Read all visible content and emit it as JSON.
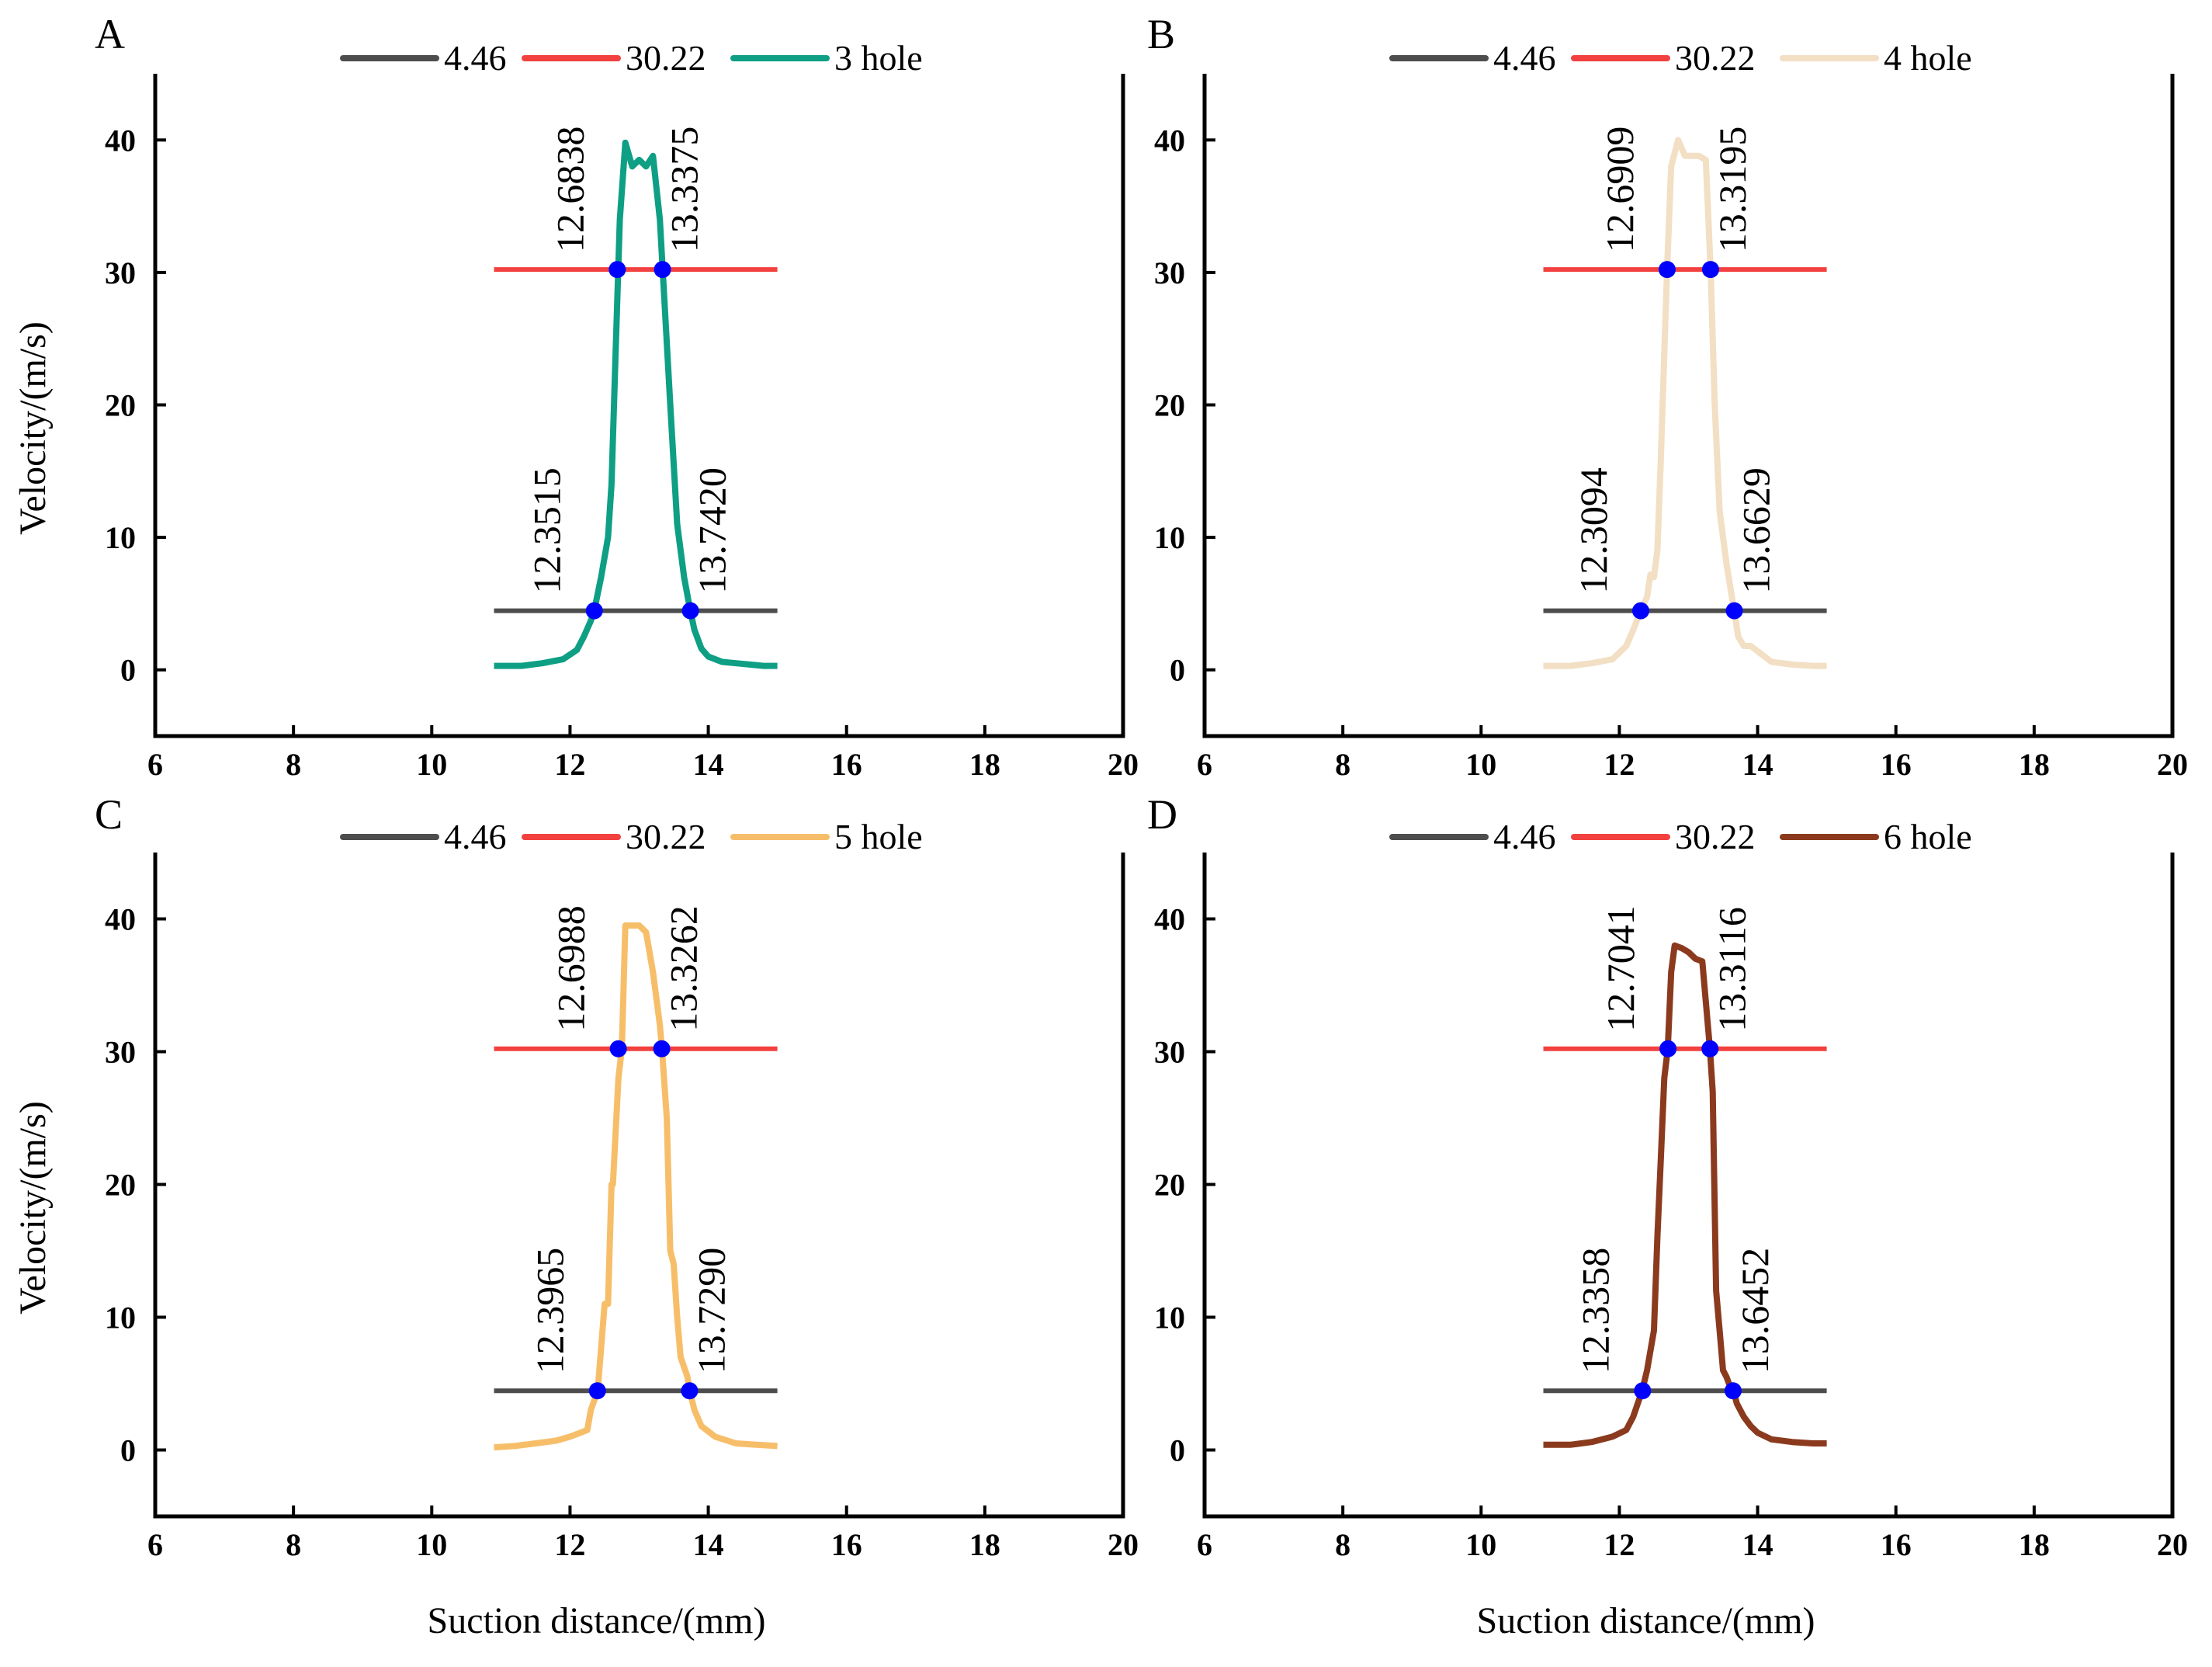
{
  "figure": {
    "xlabel": "Suction distance/(mm)",
    "ylabel": "Velocity/(m/s)"
  },
  "chart_data": [
    {
      "panel": "A",
      "type": "line",
      "xlim": [
        6,
        20
      ],
      "ylim": [
        -5,
        45
      ],
      "xticks": [
        6,
        8,
        10,
        12,
        14,
        16,
        18,
        20
      ],
      "yticks": [
        0,
        10,
        20,
        30,
        40
      ],
      "legend_position": "top-center",
      "series": [
        {
          "name": "4.46",
          "color": "#4d4d4d",
          "x": [
            10.9,
            15.0
          ],
          "y": [
            4.46,
            4.46
          ]
        },
        {
          "name": "30.22",
          "color": "#f2413f",
          "x": [
            10.9,
            15.0
          ],
          "y": [
            30.22,
            30.22
          ]
        },
        {
          "name": "3 hole",
          "color": "#0e9f84",
          "x": [
            10.9,
            11.3,
            11.6,
            11.9,
            12.1,
            12.2,
            12.3,
            12.35,
            12.45,
            12.55,
            12.6,
            12.66,
            12.72,
            12.8,
            12.9,
            13.0,
            13.1,
            13.2,
            13.3,
            13.34,
            13.45,
            13.55,
            13.65,
            13.74,
            13.8,
            13.9,
            14.0,
            14.2,
            14.4,
            14.6,
            14.8,
            15.0
          ],
          "y": [
            0.3,
            0.3,
            0.5,
            0.8,
            1.5,
            2.5,
            3.7,
            4.46,
            7,
            10,
            14,
            24,
            34,
            39.8,
            38,
            38.5,
            38,
            38.8,
            34,
            30.22,
            20,
            11,
            7,
            4.46,
            3,
            1.6,
            1.0,
            0.6,
            0.5,
            0.4,
            0.3,
            0.3
          ]
        }
      ],
      "markers": [
        {
          "x": 12.3515,
          "y": 4.46
        },
        {
          "x": 13.742,
          "y": 4.46
        },
        {
          "x": 12.6838,
          "y": 30.22
        },
        {
          "x": 13.3375,
          "y": 30.22
        }
      ],
      "annotations": [
        "12.6838",
        "13.3375",
        "12.3515",
        "13.7420"
      ]
    },
    {
      "panel": "B",
      "type": "line",
      "xlim": [
        6,
        20
      ],
      "ylim": [
        -5,
        45
      ],
      "xticks": [
        6,
        8,
        10,
        12,
        14,
        16,
        18,
        20
      ],
      "yticks": [
        0,
        10,
        20,
        30,
        40
      ],
      "legend_position": "top-center",
      "series": [
        {
          "name": "4.46",
          "color": "#4d4d4d",
          "x": [
            10.9,
            15.0
          ],
          "y": [
            4.46,
            4.46
          ]
        },
        {
          "name": "30.22",
          "color": "#f2413f",
          "x": [
            10.9,
            15.0
          ],
          "y": [
            30.22,
            30.22
          ]
        },
        {
          "name": "4 hole",
          "color": "#f2dfc4",
          "x": [
            10.9,
            11.3,
            11.6,
            11.9,
            12.1,
            12.2,
            12.31,
            12.4,
            12.45,
            12.5,
            12.55,
            12.6,
            12.69,
            12.75,
            12.85,
            12.95,
            13.05,
            13.15,
            13.25,
            13.32,
            13.38,
            13.45,
            13.55,
            13.66,
            13.72,
            13.8,
            13.9,
            14.0,
            14.2,
            14.5,
            14.8,
            15.0
          ],
          "y": [
            0.3,
            0.3,
            0.5,
            0.8,
            1.8,
            3.0,
            4.46,
            5.5,
            7.2,
            7.0,
            9,
            16,
            30.22,
            38,
            40,
            38.8,
            38.8,
            38.8,
            38.5,
            30.22,
            20,
            12,
            8,
            4.46,
            2.5,
            1.8,
            1.8,
            1.4,
            0.6,
            0.4,
            0.3,
            0.3
          ]
        }
      ],
      "markers": [
        {
          "x": 12.3094,
          "y": 4.46
        },
        {
          "x": 13.6629,
          "y": 4.46
        },
        {
          "x": 12.6909,
          "y": 30.22
        },
        {
          "x": 13.3195,
          "y": 30.22
        }
      ],
      "annotations": [
        "12.6909",
        "13.3195",
        "12.3094",
        "13.6629"
      ]
    },
    {
      "panel": "C",
      "type": "line",
      "xlim": [
        6,
        20
      ],
      "ylim": [
        -5,
        45
      ],
      "xticks": [
        6,
        8,
        10,
        12,
        14,
        16,
        18,
        20
      ],
      "yticks": [
        0,
        10,
        20,
        30,
        40
      ],
      "legend_position": "top-center",
      "series": [
        {
          "name": "4.46",
          "color": "#4d4d4d",
          "x": [
            10.9,
            15.0
          ],
          "y": [
            4.46,
            4.46
          ]
        },
        {
          "name": "30.22",
          "color": "#f2413f",
          "x": [
            10.9,
            15.0
          ],
          "y": [
            30.22,
            30.22
          ]
        },
        {
          "name": "5 hole",
          "color": "#f7be6a",
          "x": [
            10.9,
            11.2,
            11.5,
            11.8,
            12.0,
            12.1,
            12.25,
            12.3,
            12.4,
            12.5,
            12.55,
            12.6,
            12.62,
            12.7,
            12.75,
            12.8,
            12.9,
            13.0,
            13.1,
            13.2,
            13.3,
            13.33,
            13.4,
            13.45,
            13.5,
            13.55,
            13.6,
            13.7,
            13.73,
            13.8,
            13.9,
            14.1,
            14.4,
            14.7,
            15.0
          ],
          "y": [
            0.2,
            0.3,
            0.5,
            0.7,
            1.0,
            1.2,
            1.5,
            3.0,
            4.46,
            11,
            11,
            20,
            20,
            28,
            30.22,
            39.5,
            39.5,
            39.5,
            39,
            36,
            32,
            30.22,
            25,
            15,
            14,
            10,
            7,
            5.5,
            4.46,
            3,
            1.8,
            1.0,
            0.5,
            0.4,
            0.3
          ]
        }
      ],
      "markers": [
        {
          "x": 12.3965,
          "y": 4.46
        },
        {
          "x": 13.729,
          "y": 4.46
        },
        {
          "x": 12.6988,
          "y": 30.22
        },
        {
          "x": 13.3262,
          "y": 30.22
        }
      ],
      "annotations": [
        "12.6988",
        "13.3262",
        "12.3965",
        "13.7290"
      ]
    },
    {
      "panel": "D",
      "type": "line",
      "xlim": [
        6,
        20
      ],
      "ylim": [
        -5,
        45
      ],
      "xticks": [
        6,
        8,
        10,
        12,
        14,
        16,
        18,
        20
      ],
      "yticks": [
        0,
        10,
        20,
        30,
        40
      ],
      "legend_position": "top-center",
      "series": [
        {
          "name": "4.46",
          "color": "#4d4d4d",
          "x": [
            10.9,
            15.0
          ],
          "y": [
            4.46,
            4.46
          ]
        },
        {
          "name": "30.22",
          "color": "#f2413f",
          "x": [
            10.9,
            15.0
          ],
          "y": [
            30.22,
            30.22
          ]
        },
        {
          "name": "6 hole",
          "color": "#8b3a1e",
          "x": [
            10.9,
            11.3,
            11.6,
            11.9,
            12.1,
            12.2,
            12.33,
            12.4,
            12.5,
            12.55,
            12.6,
            12.65,
            12.7,
            12.75,
            12.8,
            12.9,
            13.0,
            13.1,
            13.2,
            13.31,
            13.35,
            13.4,
            13.45,
            13.5,
            13.55,
            13.6,
            13.65,
            13.7,
            13.8,
            13.9,
            14.0,
            14.2,
            14.5,
            14.8,
            15.0
          ],
          "y": [
            0.4,
            0.4,
            0.6,
            1.0,
            1.5,
            2.5,
            4.46,
            6,
            9,
            16,
            22,
            28,
            30.22,
            36,
            38,
            37.8,
            37.5,
            37,
            36.8,
            30.22,
            27,
            12,
            9,
            6,
            5.5,
            4.8,
            4.46,
            3.5,
            2.5,
            1.8,
            1.3,
            0.8,
            0.6,
            0.5,
            0.5
          ]
        }
      ],
      "markers": [
        {
          "x": 12.3358,
          "y": 4.46
        },
        {
          "x": 13.6452,
          "y": 4.46
        },
        {
          "x": 12.7041,
          "y": 30.22
        },
        {
          "x": 13.3116,
          "y": 30.22
        }
      ],
      "annotations": [
        "12.7041",
        "13.3116",
        "12.3358",
        "13.6452"
      ]
    }
  ],
  "marker_color": "#0000ff"
}
